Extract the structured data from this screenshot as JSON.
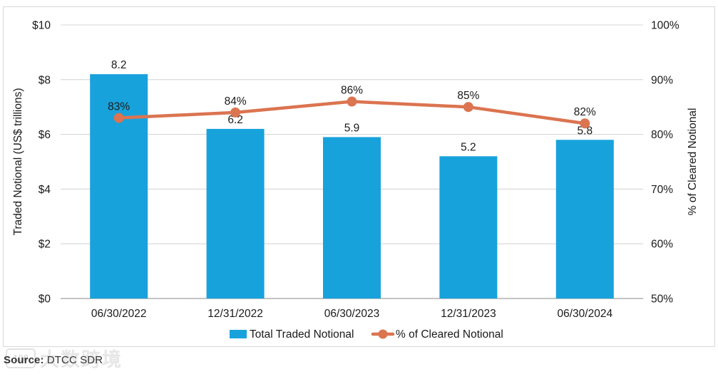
{
  "chart_data": {
    "type": "bar",
    "subtype": "combo-bar-line-dual-axis",
    "categories": [
      "06/30/2022",
      "12/31/2022",
      "06/30/2023",
      "12/31/2023",
      "06/30/2024"
    ],
    "series": [
      {
        "name": "Total Traded Notional",
        "type": "bar",
        "axis": "left",
        "values": [
          8.2,
          6.2,
          5.9,
          5.2,
          5.8
        ],
        "labels": [
          "8.2",
          "6.2",
          "5.9",
          "5.2",
          "5.8"
        ],
        "color": "#18A2DC"
      },
      {
        "name": "% of Cleared Notional",
        "type": "line",
        "axis": "right",
        "values": [
          83,
          84,
          86,
          85,
          82
        ],
        "labels": [
          "83%",
          "84%",
          "86%",
          "85%",
          "82%"
        ],
        "color": "#DB7450"
      }
    ],
    "left_axis": {
      "title": "Traded Notional (US$ trillions)",
      "ticks": [
        "$10",
        "$8",
        "$6",
        "$4",
        "$2",
        "$0"
      ],
      "min": 0,
      "max": 10
    },
    "right_axis": {
      "title": "% of Cleared Notional",
      "ticks": [
        "100%",
        "90%",
        "80%",
        "70%",
        "60%",
        "50%"
      ],
      "min": 50,
      "max": 100
    },
    "legend": {
      "position": "bottom",
      "items": [
        "Total Traded Notional",
        "% of Cleared Notional"
      ]
    },
    "grid": true,
    "colors": {
      "gridline": "#D6D6D6",
      "axis_line": "#AFAFAF",
      "panel_border": "#D8D8D8",
      "text": "#1a1a1a"
    }
  },
  "source": {
    "label": "Source:",
    "value": "DTCC SDR"
  },
  "watermark": {
    "text": "大数跨境",
    "logo": "100"
  }
}
